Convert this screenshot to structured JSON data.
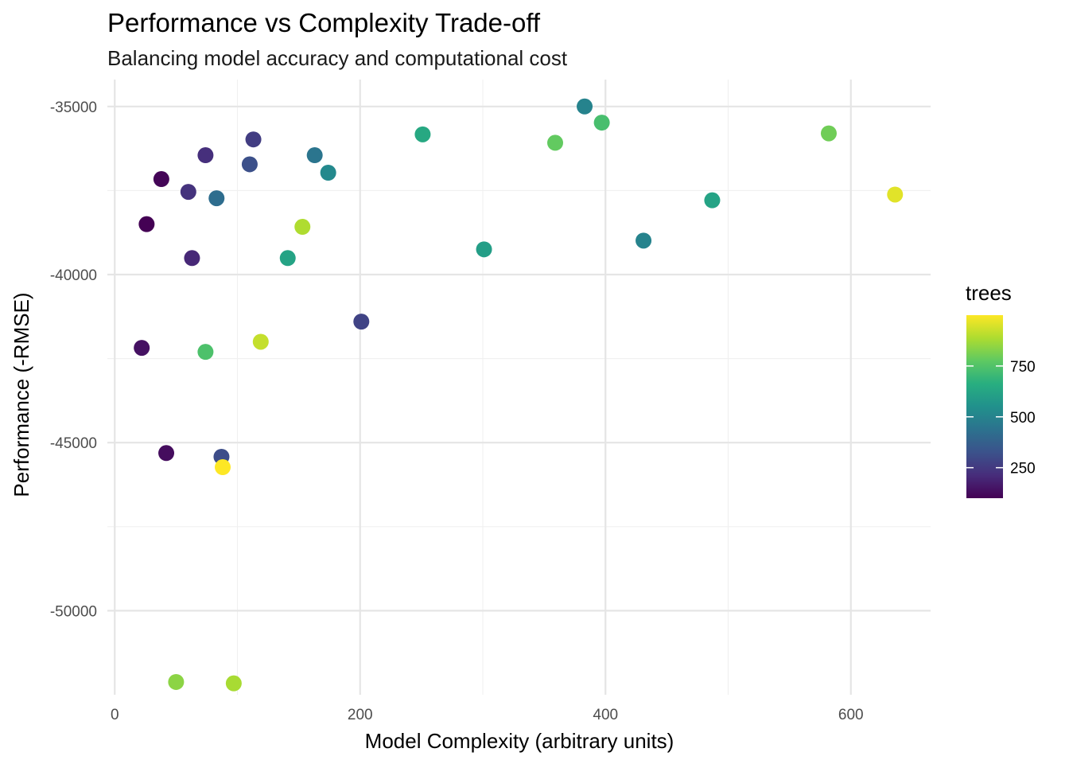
{
  "chart_data": {
    "type": "scatter",
    "title": "Performance vs Complexity Trade-off",
    "subtitle": "Balancing model accuracy and computational cost",
    "xlabel": "Model Complexity (arbitrary units)",
    "ylabel": "Performance (-RMSE)",
    "xlim": [
      -6,
      665
    ],
    "ylim": [
      -52500,
      -34200
    ],
    "x_ticks": [
      0,
      200,
      400,
      600
    ],
    "x_tick_labels": [
      "0",
      "200",
      "400",
      "600"
    ],
    "y_ticks": [
      -35000,
      -40000,
      -45000,
      -50000
    ],
    "y_tick_labels": [
      "-35000",
      "-40000",
      "-45000",
      "-50000"
    ],
    "grid": true,
    "legend": {
      "title": "trees",
      "position": "right",
      "range": [
        100,
        1000
      ],
      "breaks": [
        250,
        500,
        750
      ],
      "break_labels": [
        "250",
        "500",
        "750"
      ]
    },
    "color_scale": "viridis",
    "points": [
      {
        "x": 383,
        "y": -35000,
        "trees": 500
      },
      {
        "x": 397,
        "y": -35480,
        "trees": 730
      },
      {
        "x": 582,
        "y": -35800,
        "trees": 800
      },
      {
        "x": 251,
        "y": -35830,
        "trees": 640
      },
      {
        "x": 113,
        "y": -35980,
        "trees": 260
      },
      {
        "x": 359,
        "y": -36080,
        "trees": 780
      },
      {
        "x": 74,
        "y": -36450,
        "trees": 220
      },
      {
        "x": 163,
        "y": -36450,
        "trees": 450
      },
      {
        "x": 110,
        "y": -36720,
        "trees": 320
      },
      {
        "x": 174,
        "y": -36970,
        "trees": 520
      },
      {
        "x": 38,
        "y": -37160,
        "trees": 110
      },
      {
        "x": 60,
        "y": -37540,
        "trees": 230
      },
      {
        "x": 636,
        "y": -37620,
        "trees": 960
      },
      {
        "x": 83,
        "y": -37730,
        "trees": 420
      },
      {
        "x": 487,
        "y": -37790,
        "trees": 620
      },
      {
        "x": 26,
        "y": -38500,
        "trees": 100
      },
      {
        "x": 153,
        "y": -38580,
        "trees": 890
      },
      {
        "x": 431,
        "y": -38990,
        "trees": 500
      },
      {
        "x": 301,
        "y": -39250,
        "trees": 600
      },
      {
        "x": 63,
        "y": -39510,
        "trees": 200
      },
      {
        "x": 141,
        "y": -39510,
        "trees": 620
      },
      {
        "x": 201,
        "y": -41400,
        "trees": 280
      },
      {
        "x": 119,
        "y": -42000,
        "trees": 920
      },
      {
        "x": 22,
        "y": -42180,
        "trees": 140
      },
      {
        "x": 74,
        "y": -42300,
        "trees": 740
      },
      {
        "x": 42,
        "y": -45310,
        "trees": 130
      },
      {
        "x": 87,
        "y": -45420,
        "trees": 310
      },
      {
        "x": 88,
        "y": -45730,
        "trees": 1000
      },
      {
        "x": 50,
        "y": -52120,
        "trees": 840
      },
      {
        "x": 97,
        "y": -52160,
        "trees": 880
      }
    ]
  }
}
